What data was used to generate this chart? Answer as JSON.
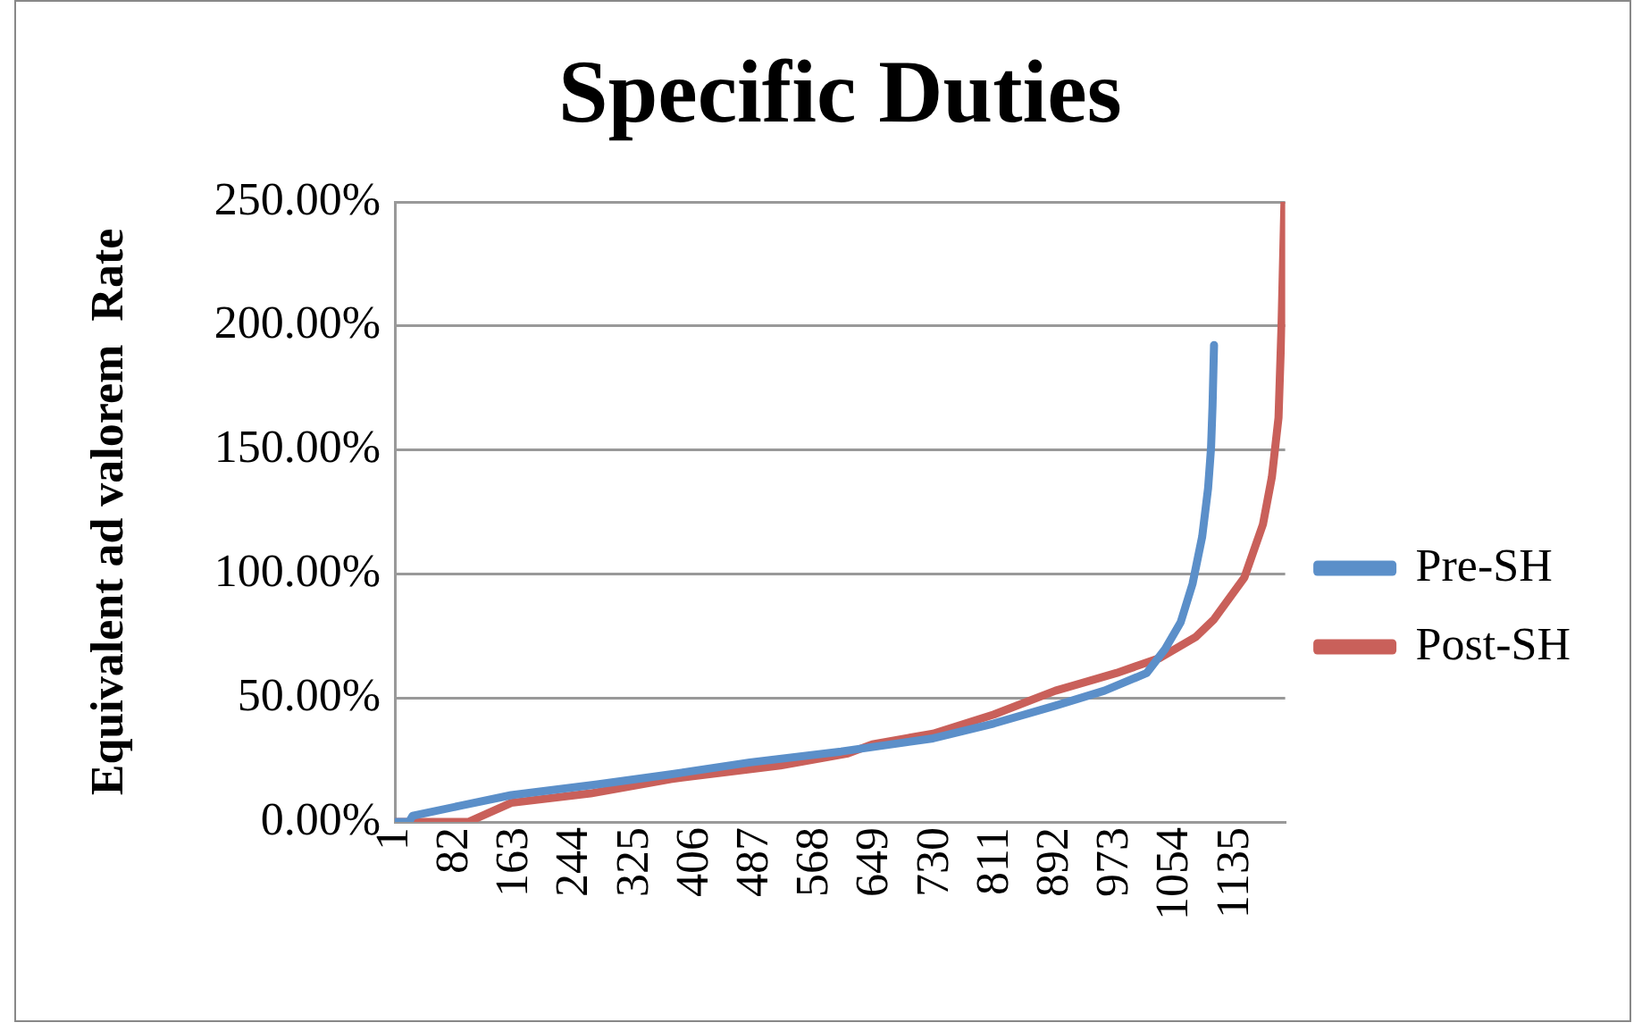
{
  "chart_data": {
    "type": "line",
    "title": "Specific Duties",
    "ylabel": "Equivalent ad valorem  Rate",
    "xlim": [
      1,
      1202
    ],
    "xticks": [
      1,
      82,
      163,
      244,
      325,
      406,
      487,
      568,
      649,
      730,
      811,
      892,
      973,
      1054,
      1135
    ],
    "ylim": [
      0,
      250
    ],
    "yticks": [
      {
        "value": 0,
        "label": "0.00%"
      },
      {
        "value": 50,
        "label": "50.00%"
      },
      {
        "value": 100,
        "label": "100.00%"
      },
      {
        "value": 150,
        "label": "150.00%"
      },
      {
        "value": 200,
        "label": "200.00%"
      },
      {
        "value": 250,
        "label": "250.00%"
      }
    ],
    "grid": "y",
    "legend": "right",
    "marker": "none",
    "line_style": "solid",
    "series": [
      {
        "name": "Pre-SH",
        "color": "#5b8fc9",
        "x": [
          1,
          20,
          25,
          92,
          158,
          274,
          373,
          480,
          603,
          727,
          809,
          892,
          958,
          1015,
          1040,
          1061,
          1077,
          1090,
          1098,
          1102,
          1104,
          1106
        ],
        "values": [
          0,
          0,
          2.5,
          6.7,
          10.8,
          15.1,
          19.2,
          24,
          28.4,
          33.7,
          39.7,
          46.9,
          52.9,
          60,
          69.7,
          80.5,
          96,
          115,
          134.6,
          151,
          168,
          192.3
        ]
      },
      {
        "name": "Post-SH",
        "color": "#c9605a",
        "x": [
          1,
          100,
          158,
          265,
          373,
          521,
          612,
          645,
          727,
          809,
          892,
          974,
          1032,
          1081,
          1106,
          1147,
          1172,
          1184,
          1193,
          1197,
          1201
        ],
        "values": [
          0,
          0,
          7.7,
          11.5,
          17.3,
          22.8,
          27.6,
          31.3,
          35.6,
          43.3,
          52.9,
          60,
          66,
          74.5,
          81.7,
          98.6,
          120,
          139,
          163,
          199.5,
          250
        ]
      }
    ]
  }
}
